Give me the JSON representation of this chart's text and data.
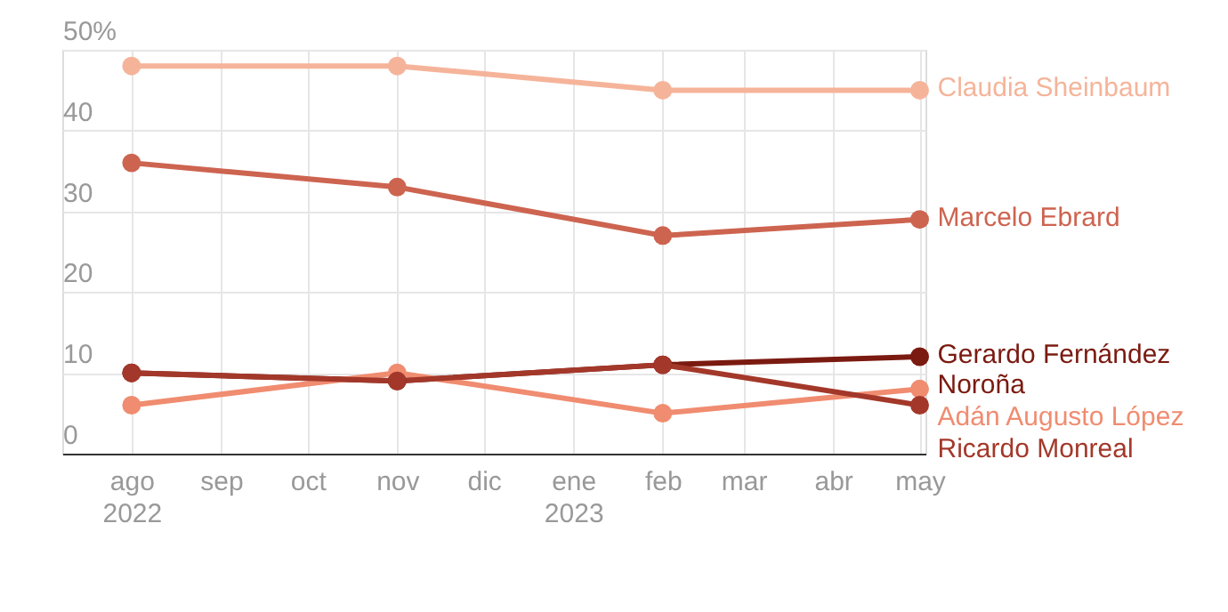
{
  "chart_data": {
    "type": "line",
    "x": [
      "2022-08",
      "2022-11",
      "2023-02",
      "2023-05"
    ],
    "series": [
      {
        "name": "Claudia Sheinbaum",
        "color": "#f5b49a",
        "values": [
          48,
          48,
          45,
          45
        ]
      },
      {
        "name": "Marcelo Ebrard",
        "color": "#cd6450",
        "values": [
          36,
          33,
          27,
          29
        ]
      },
      {
        "name": "Gerardo Fernández Noroña",
        "color": "#7a1a10",
        "values": [
          10,
          9,
          11,
          12
        ]
      },
      {
        "name": "Adán Augusto López",
        "color": "#f08c70",
        "values": [
          6,
          10,
          5,
          8
        ]
      },
      {
        "name": "Ricardo Monreal",
        "color": "#a3382a",
        "values": [
          10,
          9,
          11,
          6
        ]
      }
    ],
    "xlim": [
      "2022-07-08",
      "2023-05-03"
    ],
    "xticks": [
      {
        "value": "2022-08",
        "label": "ago 2022"
      },
      {
        "value": "2022-09",
        "label": "sep"
      },
      {
        "value": "2022-10",
        "label": "oct"
      },
      {
        "value": "2022-11",
        "label": "nov"
      },
      {
        "value": "2022-12",
        "label": "dic"
      },
      {
        "value": "2023-01",
        "label": "ene 2023"
      },
      {
        "value": "2023-02",
        "label": "feb"
      },
      {
        "value": "2023-03",
        "label": "mar"
      },
      {
        "value": "2023-04",
        "label": "abr"
      },
      {
        "value": "2023-05",
        "label": "may"
      }
    ],
    "ylim": [
      0,
      50
    ],
    "yticks": [
      0,
      10,
      20,
      30,
      40,
      {
        "value": 50,
        "label": "50%"
      }
    ],
    "grid": true,
    "legend": false,
    "marker": "circle",
    "line_style": "solid"
  }
}
